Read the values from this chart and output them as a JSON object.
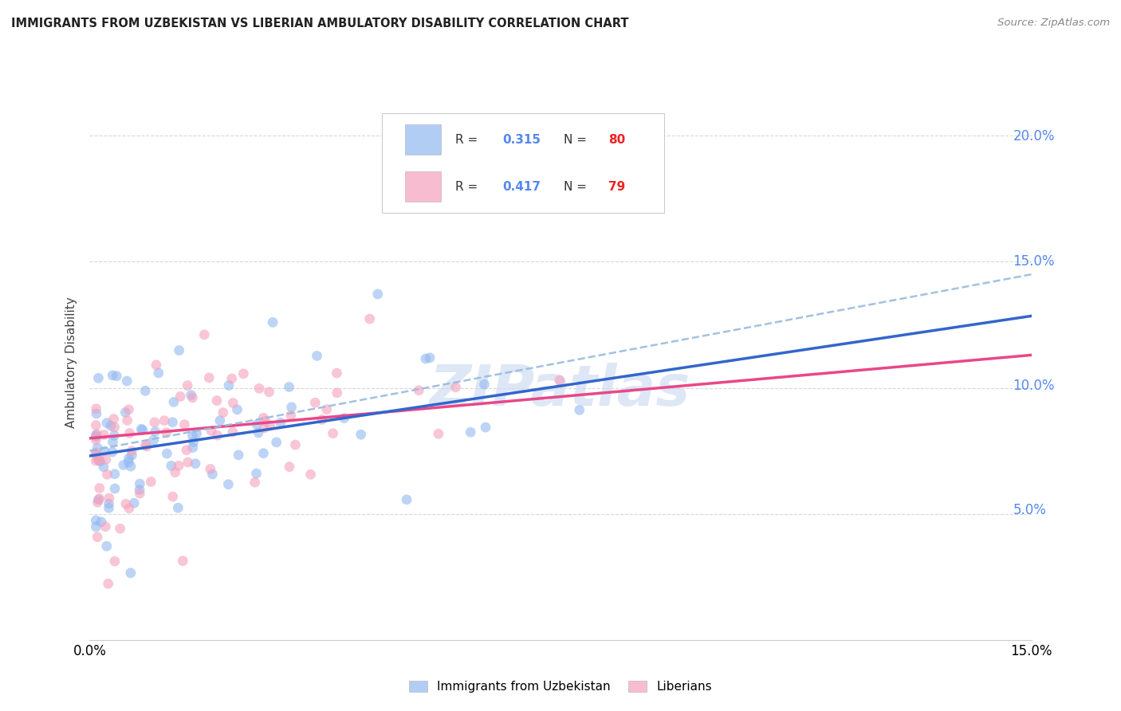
{
  "title": "IMMIGRANTS FROM UZBEKISTAN VS LIBERIAN AMBULATORY DISABILITY CORRELATION CHART",
  "source": "Source: ZipAtlas.com",
  "ylabel": "Ambulatory Disability",
  "xmin": 0.0,
  "xmax": 0.15,
  "ymin": 0.0,
  "ymax": 0.22,
  "ytick_vals": [
    0.05,
    0.1,
    0.15,
    0.2
  ],
  "ytick_labels": [
    "5.0%",
    "10.0%",
    "15.0%",
    "20.0%"
  ],
  "xtick_vals": [
    0.0,
    0.05,
    0.1,
    0.15
  ],
  "xtick_labels": [
    "0.0%",
    "",
    "",
    "15.0%"
  ],
  "blue_color": "#92b8f0",
  "pink_color": "#f4a0bc",
  "blue_line_color": "#3366cc",
  "pink_line_color": "#e84888",
  "blue_dash_color": "#99bbdd",
  "grid_color": "#d8d8d8",
  "background_color": "#ffffff",
  "r_blue": 0.315,
  "n_blue": 80,
  "r_pink": 0.417,
  "n_pink": 79,
  "figwidth": 14.06,
  "figheight": 8.92,
  "dpi": 100,
  "legend_text_color": "#333333",
  "legend_r_color": "#5588ee",
  "legend_n_color": "#ee2222",
  "right_tick_color": "#5588ee"
}
